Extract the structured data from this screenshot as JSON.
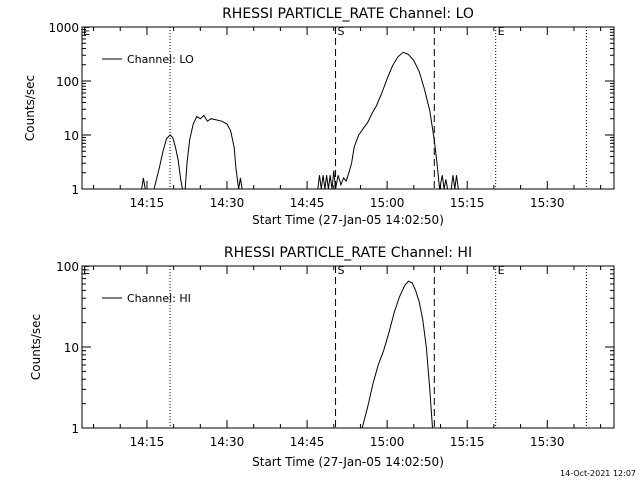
{
  "footer": {
    "timestamp": "14-Oct-2021 12:07"
  },
  "chart_data": [
    {
      "type": "line",
      "title": "RHESSI PARTICLE_RATE Channel: LO",
      "xlabel": "Start Time (27-Jan-05 14:02:50)",
      "ylabel": "Counts/sec",
      "y_scale": "log",
      "ylim": [
        1,
        1000
      ],
      "y_ticks": [
        {
          "v": 1,
          "label": "1"
        },
        {
          "v": 10,
          "label": "10"
        },
        {
          "v": 100,
          "label": "100"
        },
        {
          "v": 1000,
          "label": "1000"
        }
      ],
      "xlim": [
        "14:02:50",
        "15:42:30"
      ],
      "x_ticks": [
        "14:15",
        "14:30",
        "14:45",
        "15:00",
        "15:15",
        "15:30"
      ],
      "legend": {
        "label": "Channel: LO",
        "placement": "top-left"
      },
      "markers": [
        {
          "time": "14:19:20",
          "style": "dotted",
          "label": ""
        },
        {
          "time": "14:50:20",
          "style": "dashed",
          "label": "S"
        },
        {
          "time": "15:08:50",
          "style": "dashed",
          "label": ""
        },
        {
          "time": "15:20:20",
          "style": "dotted",
          "label": "E"
        },
        {
          "time": "15:37:20",
          "style": "dotted",
          "label": ""
        }
      ],
      "corner_labels": [
        {
          "time": "14:02:50",
          "label": "E"
        }
      ],
      "series": [
        {
          "name": "Channel: LO",
          "points": [
            [
              "14:14:00",
              1
            ],
            [
              "14:14:20",
              1.6
            ],
            [
              "14:14:40",
              1
            ],
            [
              "14:16:20",
              1
            ],
            [
              "14:17:20",
              2.5
            ],
            [
              "14:18:00",
              5
            ],
            [
              "14:18:40",
              8.5
            ],
            [
              "14:19:20",
              10
            ],
            [
              "14:19:50",
              9
            ],
            [
              "14:20:20",
              6
            ],
            [
              "14:20:50",
              3.5
            ],
            [
              "14:21:20",
              1.5
            ],
            [
              "14:21:40",
              1
            ],
            [
              "14:22:10",
              1
            ],
            [
              "14:22:30",
              3
            ],
            [
              "14:23:00",
              8
            ],
            [
              "14:23:40",
              16
            ],
            [
              "14:24:20",
              22
            ],
            [
              "14:25:00",
              20
            ],
            [
              "14:25:40",
              23
            ],
            [
              "14:26:20",
              18
            ],
            [
              "14:27:00",
              20
            ],
            [
              "14:28:00",
              19
            ],
            [
              "14:29:00",
              18
            ],
            [
              "14:30:00",
              16
            ],
            [
              "14:30:40",
              12
            ],
            [
              "14:31:20",
              6
            ],
            [
              "14:31:40",
              2.5
            ],
            [
              "14:32:10",
              1
            ],
            [
              "14:32:30",
              1.6
            ],
            [
              "14:32:50",
              1
            ],
            [
              "14:47:00",
              1
            ],
            [
              "14:47:20",
              1.8
            ],
            [
              "14:47:40",
              1
            ],
            [
              "14:48:00",
              1.8
            ],
            [
              "14:48:20",
              1
            ],
            [
              "14:48:40",
              1.8
            ],
            [
              "14:49:00",
              1
            ],
            [
              "14:49:20",
              1.8
            ],
            [
              "14:49:40",
              1
            ],
            [
              "14:50:00",
              2.2
            ],
            [
              "14:50:20",
              1
            ],
            [
              "14:50:50",
              1.8
            ],
            [
              "14:51:20",
              1.2
            ],
            [
              "14:51:50",
              1.6
            ],
            [
              "14:52:20",
              1.4
            ],
            [
              "14:52:50",
              2
            ],
            [
              "14:53:20",
              3
            ],
            [
              "14:53:50",
              6
            ],
            [
              "14:54:40",
              10
            ],
            [
              "14:55:30",
              13
            ],
            [
              "14:56:20",
              17
            ],
            [
              "14:57:10",
              25
            ],
            [
              "14:58:00",
              35
            ],
            [
              "14:59:00",
              60
            ],
            [
              "15:00:00",
              110
            ],
            [
              "15:01:00",
              190
            ],
            [
              "15:02:00",
              280
            ],
            [
              "15:03:00",
              340
            ],
            [
              "15:04:00",
              310
            ],
            [
              "15:05:00",
              240
            ],
            [
              "15:06:00",
              150
            ],
            [
              "15:07:00",
              70
            ],
            [
              "15:08:00",
              28
            ],
            [
              "15:08:50",
              8
            ],
            [
              "15:09:20",
              3
            ],
            [
              "15:09:50",
              1
            ],
            [
              "15:10:20",
              1.8
            ],
            [
              "15:10:40",
              1
            ],
            [
              "15:11:00",
              1.5
            ],
            [
              "15:11:20",
              1
            ],
            [
              "15:12:00",
              1
            ],
            [
              "15:12:20",
              1.8
            ],
            [
              "15:12:40",
              1
            ],
            [
              "15:13:00",
              1.8
            ],
            [
              "15:13:20",
              1
            ],
            [
              "15:14:20",
              1
            ]
          ]
        }
      ]
    },
    {
      "type": "line",
      "title": "RHESSI PARTICLE_RATE Channel: HI",
      "xlabel": "Start Time (27-Jan-05 14:02:50)",
      "ylabel": "Counts/sec",
      "y_scale": "log",
      "ylim": [
        1,
        100
      ],
      "y_ticks": [
        {
          "v": 1,
          "label": "1"
        },
        {
          "v": 10,
          "label": "10"
        },
        {
          "v": 100,
          "label": "100"
        }
      ],
      "xlim": [
        "14:02:50",
        "15:42:30"
      ],
      "x_ticks": [
        "14:15",
        "14:30",
        "14:45",
        "15:00",
        "15:15",
        "15:30"
      ],
      "legend": {
        "label": "Channel: HI",
        "placement": "top-left"
      },
      "markers": [
        {
          "time": "14:19:20",
          "style": "dotted",
          "label": ""
        },
        {
          "time": "14:50:20",
          "style": "dashed",
          "label": "S"
        },
        {
          "time": "15:08:50",
          "style": "dashed",
          "label": ""
        },
        {
          "time": "15:20:20",
          "style": "dotted",
          "label": "E"
        },
        {
          "time": "15:37:20",
          "style": "dotted",
          "label": ""
        }
      ],
      "corner_labels": [
        {
          "time": "14:02:50",
          "label": "E"
        }
      ],
      "series": [
        {
          "name": "Channel: HI",
          "points": [
            [
              "14:55:20",
              1
            ],
            [
              "14:56:20",
              1.8
            ],
            [
              "14:57:20",
              3.5
            ],
            [
              "14:58:20",
              6
            ],
            [
              "14:59:20",
              9
            ],
            [
              "15:00:20",
              15
            ],
            [
              "15:01:20",
              27
            ],
            [
              "15:02:20",
              42
            ],
            [
              "15:03:20",
              58
            ],
            [
              "15:04:00",
              65
            ],
            [
              "15:04:40",
              62
            ],
            [
              "15:05:20",
              50
            ],
            [
              "15:06:00",
              36
            ],
            [
              "15:06:40",
              22
            ],
            [
              "15:07:20",
              10
            ],
            [
              "15:08:00",
              3
            ],
            [
              "15:08:30",
              1
            ]
          ]
        }
      ]
    }
  ]
}
